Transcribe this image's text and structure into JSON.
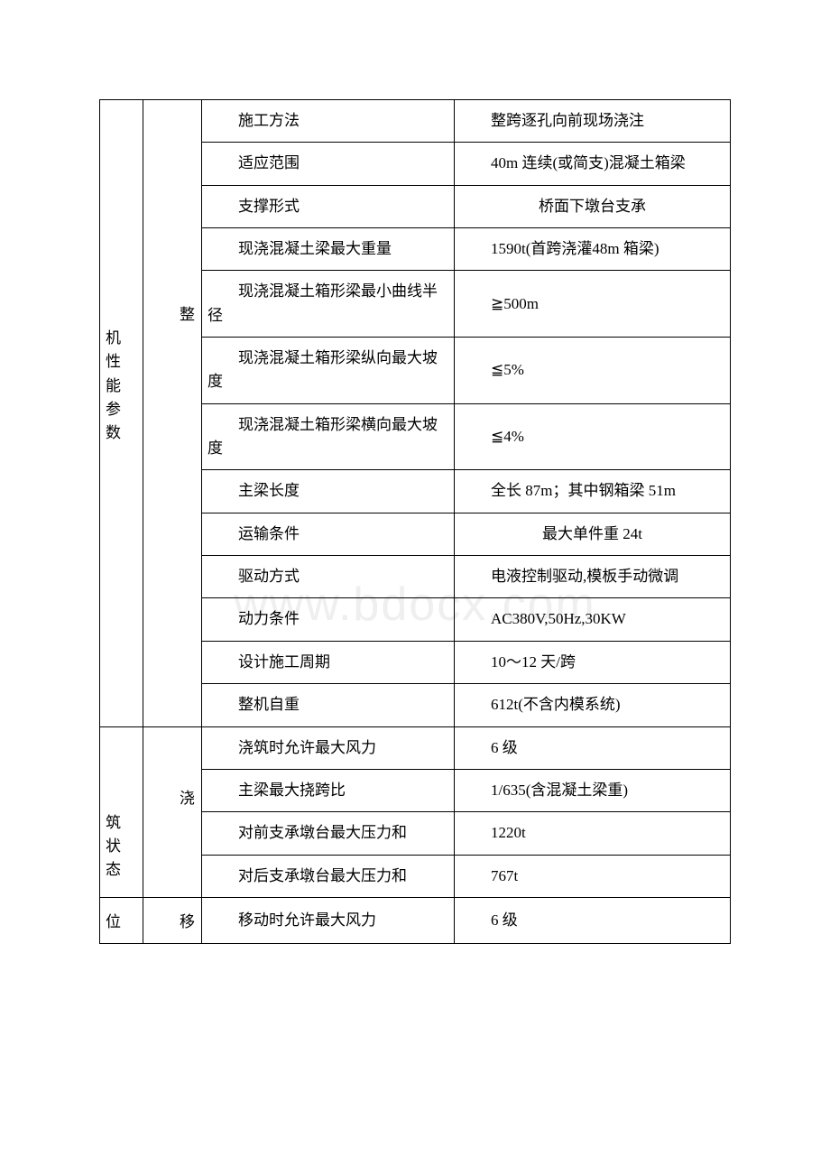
{
  "watermark": "www.bdocx.com",
  "sections": [
    {
      "a_label": "整机性能参数",
      "b_label": "整",
      "b_offset_rows": 4,
      "row_start": 0,
      "row_count": 13,
      "rows": [
        {
          "c": "施工方法",
          "d": "整跨逐孔向前现场浇注",
          "d_indent": true
        },
        {
          "c": "适应范围",
          "d": "40m 连续(或简支)混凝土箱梁",
          "d_indent": true
        },
        {
          "c": "支撑形式",
          "d": "桥面下墩台支承",
          "d_center": true
        },
        {
          "c": "现浇混凝土梁最大重量",
          "d": "1590t(首跨浇灌48m 箱梁)",
          "d_indent": true
        },
        {
          "c": "现浇混凝土箱形梁最小曲线半径",
          "d": "≧500m",
          "d_indent": true
        },
        {
          "c": "现浇混凝土箱形梁纵向最大坡度",
          "d": "≦5%",
          "d_indent": true
        },
        {
          "c": "现浇混凝土箱形梁横向最大坡度",
          "d": "≦4%",
          "d_indent": true
        },
        {
          "c": "主梁长度",
          "d": "全长 87m；其中钢箱梁 51m",
          "d_indent": true
        },
        {
          "c": "运输条件",
          "d": "最大单件重 24t",
          "d_center": true
        },
        {
          "c": "驱动方式",
          "d": "电液控制驱动,模板手动微调",
          "d_indent": true
        },
        {
          "c": "动力条件",
          "d": "AC380V,50Hz,30KW",
          "d_indent": true
        },
        {
          "c": "设计施工周期",
          "d": "10～12 天/跨",
          "d_indent": true
        },
        {
          "c": "整机自重",
          "d": "612t(不含内模系统)",
          "d_indent": true
        }
      ]
    },
    {
      "a_label": "浇筑状态",
      "b_label": "浇",
      "b_offset_rows": 1,
      "row_start": 13,
      "row_count": 4,
      "rows": [
        {
          "c": "浇筑时允许最大风力",
          "d": "6 级",
          "d_indent": true
        },
        {
          "c": "主梁最大挠跨比",
          "d": "1/635(含混凝土梁重)",
          "d_indent": true
        },
        {
          "c": "对前支承墩台最大压力和",
          "d": "1220t",
          "d_indent": true
        },
        {
          "c": "对后支承墩台最大压力和",
          "d": "767t",
          "d_indent": true
        }
      ]
    },
    {
      "a_label": "移位",
      "b_label": "移",
      "b_offset_rows": 0,
      "row_start": 17,
      "row_count": 1,
      "rows": [
        {
          "c": "移动时允许最大风力",
          "d": "6 级",
          "d_indent": true
        }
      ]
    }
  ]
}
